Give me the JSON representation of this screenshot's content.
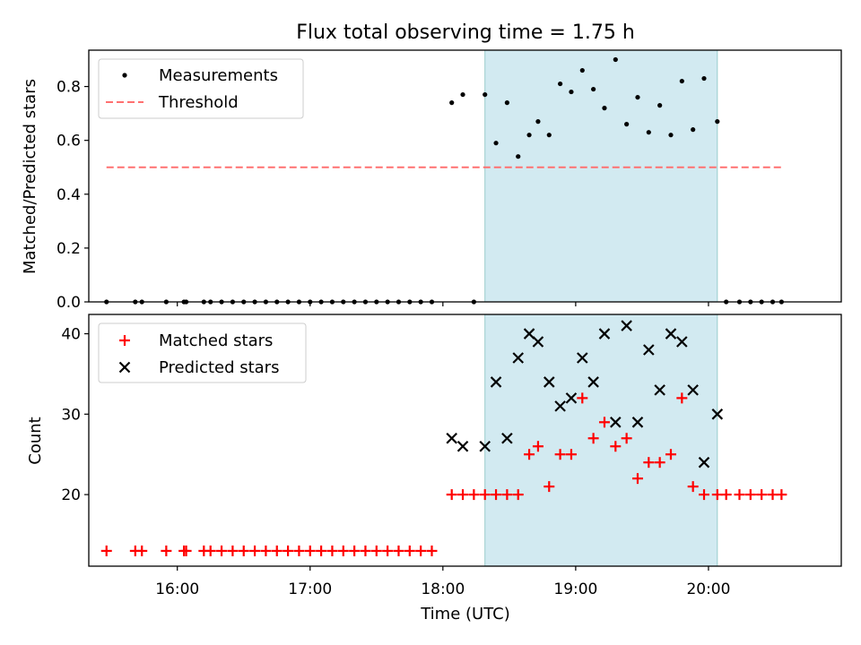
{
  "title": "Flux total observing time = 1.75 h",
  "colors": {
    "measurement": "#000000",
    "threshold": "#ff7070",
    "matched": "#ff0000",
    "predicted": "#000000",
    "span": "#add8e6",
    "span_edge": "#99cccc"
  },
  "chart_data": [
    {
      "type": "scatter",
      "ylabel": "Matched/Predicted stars",
      "xlabel": "",
      "ylim": [
        0,
        0.935
      ],
      "y_ticks": [
        "0.0",
        "0.2",
        "0.4",
        "0.6",
        "0.8"
      ],
      "x_ticks_labels_shown": false,
      "legend": {
        "placement": "upper-left",
        "entries": [
          "Measurements",
          "Threshold"
        ]
      },
      "span": {
        "x_start": "18:19",
        "x_end": "20:04"
      },
      "threshold": {
        "y": 0.5,
        "x_start": "15:28",
        "x_end": "20:33"
      },
      "series": [
        {
          "name": "Measurements",
          "marker": "dot",
          "points": [
            [
              "15:28",
              0.0
            ],
            [
              "15:41",
              0.0
            ],
            [
              "15:44",
              0.0
            ],
            [
              "15:55",
              0.0
            ],
            [
              "16:03",
              0.0
            ],
            [
              "16:04",
              0.0
            ],
            [
              "16:12",
              0.0
            ],
            [
              "16:15",
              0.0
            ],
            [
              "16:20",
              0.0
            ],
            [
              "16:25",
              0.0
            ],
            [
              "16:30",
              0.0
            ],
            [
              "16:35",
              0.0
            ],
            [
              "16:40",
              0.0
            ],
            [
              "16:45",
              0.0
            ],
            [
              "16:50",
              0.0
            ],
            [
              "16:55",
              0.0
            ],
            [
              "17:00",
              0.0
            ],
            [
              "17:05",
              0.0
            ],
            [
              "17:10",
              0.0
            ],
            [
              "17:15",
              0.0
            ],
            [
              "17:20",
              0.0
            ],
            [
              "17:25",
              0.0
            ],
            [
              "17:30",
              0.0
            ],
            [
              "17:35",
              0.0
            ],
            [
              "17:40",
              0.0
            ],
            [
              "17:45",
              0.0
            ],
            [
              "17:50",
              0.0
            ],
            [
              "17:55",
              0.0
            ],
            [
              "18:14",
              0.0
            ],
            [
              "18:04",
              0.74
            ],
            [
              "18:09",
              0.77
            ],
            [
              "18:19",
              0.77
            ],
            [
              "18:24",
              0.59
            ],
            [
              "18:29",
              0.74
            ],
            [
              "18:34",
              0.54
            ],
            [
              "18:39",
              0.62
            ],
            [
              "18:43",
              0.67
            ],
            [
              "18:48",
              0.62
            ],
            [
              "18:53",
              0.81
            ],
            [
              "18:58",
              0.78
            ],
            [
              "19:03",
              0.86
            ],
            [
              "19:08",
              0.79
            ],
            [
              "19:13",
              0.72
            ],
            [
              "19:18",
              0.9
            ],
            [
              "19:23",
              0.66
            ],
            [
              "19:28",
              0.76
            ],
            [
              "19:33",
              0.63
            ],
            [
              "19:38",
              0.73
            ],
            [
              "19:43",
              0.62
            ],
            [
              "19:48",
              0.82
            ],
            [
              "19:53",
              0.64
            ],
            [
              "19:58",
              0.83
            ],
            [
              "20:04",
              0.67
            ],
            [
              "20:08",
              0.0
            ],
            [
              "20:14",
              0.0
            ],
            [
              "20:19",
              0.0
            ],
            [
              "20:24",
              0.0
            ],
            [
              "20:29",
              0.0
            ],
            [
              "20:33",
              0.0
            ]
          ]
        }
      ]
    },
    {
      "type": "scatter",
      "ylabel": "Count",
      "xlabel": "Time (UTC)",
      "ylim": [
        11.1,
        42.4
      ],
      "y_ticks": [
        "20",
        "30",
        "40"
      ],
      "x_ticks": [
        "16:00",
        "17:00",
        "18:00",
        "19:00",
        "20:00"
      ],
      "legend": {
        "placement": "upper-left",
        "entries": [
          "Matched stars",
          "Predicted stars"
        ]
      },
      "span": {
        "x_start": "18:19",
        "x_end": "20:04"
      },
      "series": [
        {
          "name": "Matched stars",
          "marker": "plus",
          "points": [
            [
              "15:28",
              13
            ],
            [
              "15:41",
              13
            ],
            [
              "15:44",
              13
            ],
            [
              "15:55",
              13
            ],
            [
              "16:03",
              13
            ],
            [
              "16:04",
              13
            ],
            [
              "16:12",
              13
            ],
            [
              "16:15",
              13
            ],
            [
              "16:20",
              13
            ],
            [
              "16:25",
              13
            ],
            [
              "16:30",
              13
            ],
            [
              "16:35",
              13
            ],
            [
              "16:40",
              13
            ],
            [
              "16:45",
              13
            ],
            [
              "16:50",
              13
            ],
            [
              "16:55",
              13
            ],
            [
              "17:00",
              13
            ],
            [
              "17:05",
              13
            ],
            [
              "17:10",
              13
            ],
            [
              "17:15",
              13
            ],
            [
              "17:20",
              13
            ],
            [
              "17:25",
              13
            ],
            [
              "17:30",
              13
            ],
            [
              "17:35",
              13
            ],
            [
              "17:40",
              13
            ],
            [
              "17:45",
              13
            ],
            [
              "17:50",
              13
            ],
            [
              "17:55",
              13
            ],
            [
              "18:04",
              20
            ],
            [
              "18:09",
              20
            ],
            [
              "18:14",
              20
            ],
            [
              "18:19",
              20
            ],
            [
              "18:24",
              20
            ],
            [
              "18:29",
              20
            ],
            [
              "18:34",
              20
            ],
            [
              "18:39",
              25
            ],
            [
              "18:43",
              26
            ],
            [
              "18:48",
              21
            ],
            [
              "18:53",
              25
            ],
            [
              "18:58",
              25
            ],
            [
              "19:03",
              32
            ],
            [
              "19:08",
              27
            ],
            [
              "19:13",
              29
            ],
            [
              "19:18",
              26
            ],
            [
              "19:23",
              27
            ],
            [
              "19:28",
              22
            ],
            [
              "19:33",
              24
            ],
            [
              "19:38",
              24
            ],
            [
              "19:43",
              25
            ],
            [
              "19:48",
              32
            ],
            [
              "19:53",
              21
            ],
            [
              "19:58",
              20
            ],
            [
              "20:04",
              20
            ],
            [
              "20:08",
              20
            ],
            [
              "20:14",
              20
            ],
            [
              "20:19",
              20
            ],
            [
              "20:24",
              20
            ],
            [
              "20:29",
              20
            ],
            [
              "20:33",
              20
            ]
          ]
        },
        {
          "name": "Predicted stars",
          "marker": "x",
          "points": [
            [
              "18:04",
              27
            ],
            [
              "18:09",
              26
            ],
            [
              "18:19",
              26
            ],
            [
              "18:24",
              34
            ],
            [
              "18:29",
              27
            ],
            [
              "18:34",
              37
            ],
            [
              "18:39",
              40
            ],
            [
              "18:43",
              39
            ],
            [
              "18:48",
              34
            ],
            [
              "18:53",
              31
            ],
            [
              "18:58",
              32
            ],
            [
              "19:03",
              37
            ],
            [
              "19:08",
              34
            ],
            [
              "19:13",
              40
            ],
            [
              "19:18",
              29
            ],
            [
              "19:23",
              41
            ],
            [
              "19:28",
              29
            ],
            [
              "19:33",
              38
            ],
            [
              "19:38",
              33
            ],
            [
              "19:43",
              40
            ],
            [
              "19:48",
              39
            ],
            [
              "19:53",
              33
            ],
            [
              "19:58",
              24
            ],
            [
              "20:04",
              30
            ]
          ]
        }
      ]
    }
  ]
}
